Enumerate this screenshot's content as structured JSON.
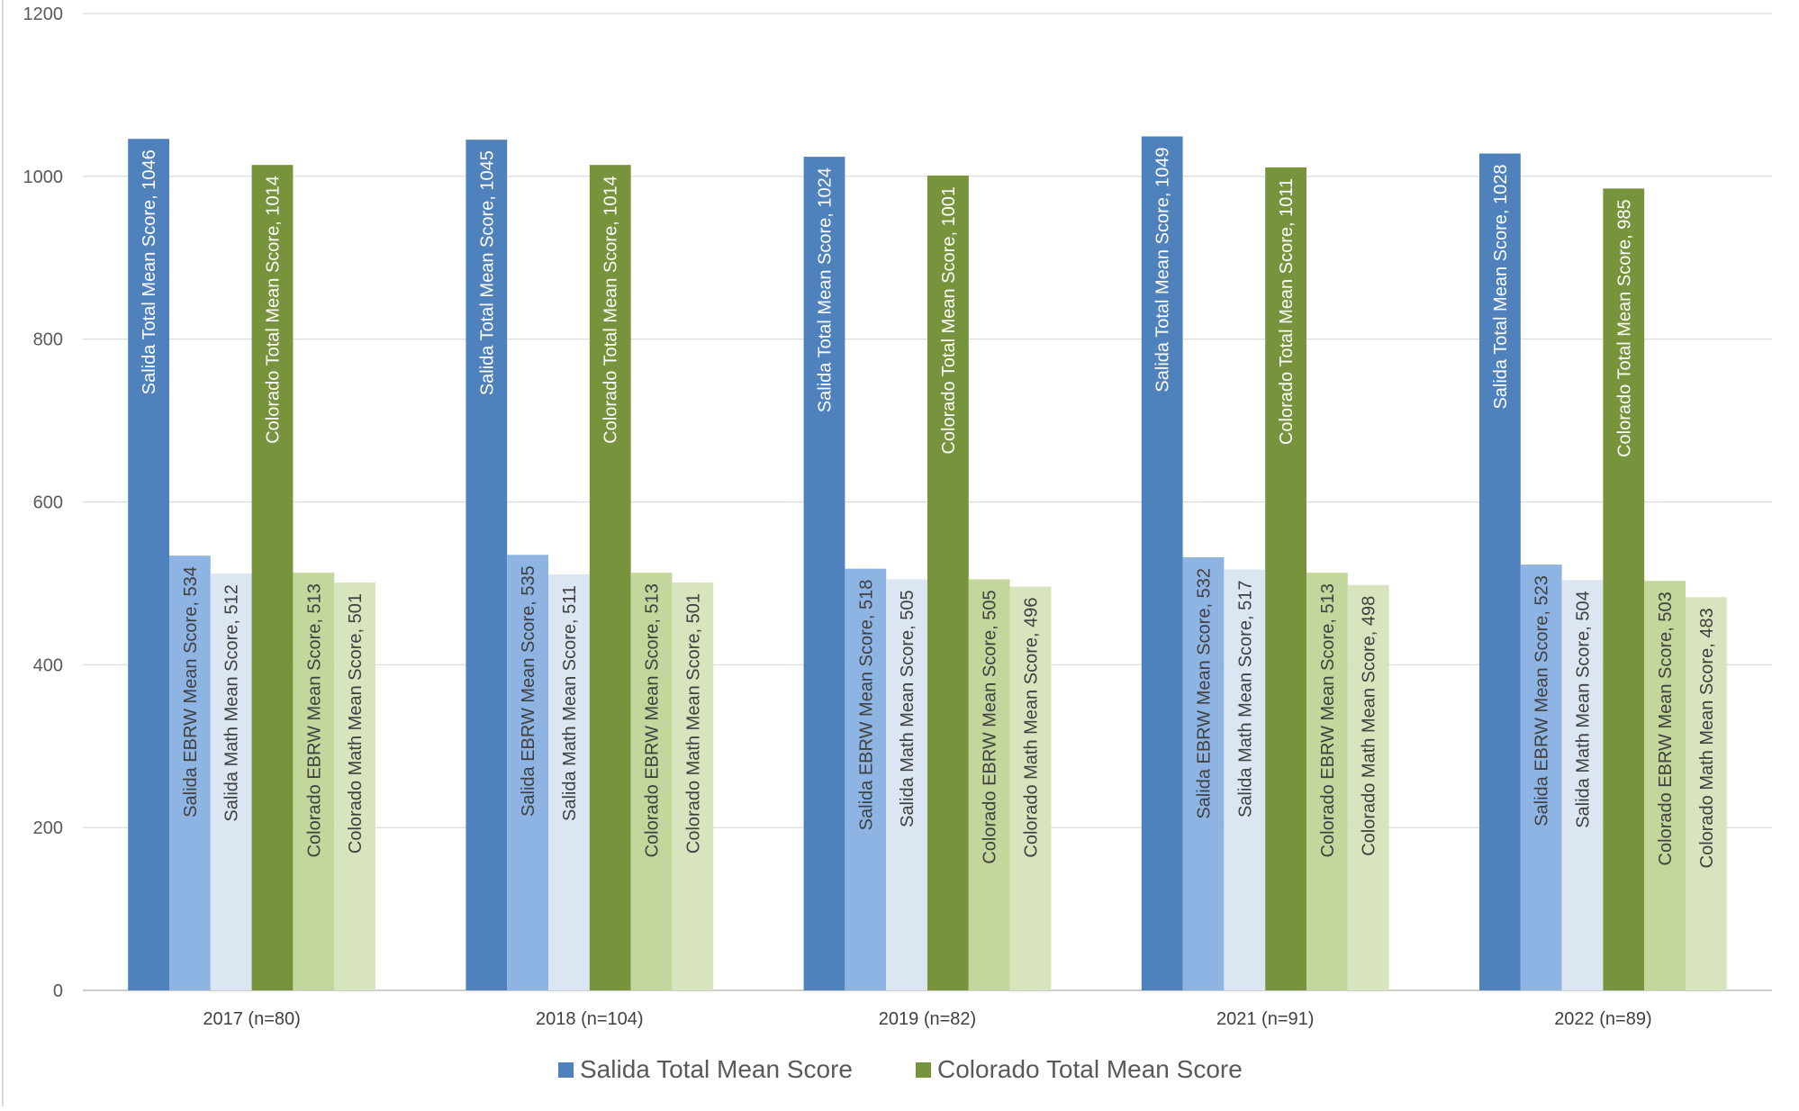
{
  "chart_data": {
    "type": "bar",
    "title": "",
    "xlabel": "",
    "ylabel": "",
    "ylim": [
      0,
      1200
    ],
    "yticks": [
      0,
      200,
      400,
      600,
      800,
      1000,
      1200
    ],
    "grid": true,
    "legend_position": "bottom",
    "categories": [
      "2017 (n=80)",
      "2018 (n=104)",
      "2019 (n=82)",
      "2021 (n=91)",
      "2022 (n=89)"
    ],
    "series": [
      {
        "name": "Salida Total Mean Score",
        "color": "#4f81bd",
        "values": [
          1046,
          1045,
          1024,
          1049,
          1028
        ]
      },
      {
        "name": "Salida EBRW Mean Score",
        "color": "#8eb4e3",
        "values": [
          534,
          535,
          518,
          532,
          523
        ]
      },
      {
        "name": "Salida Math Mean Score",
        "color": "#dce6f2",
        "values": [
          512,
          511,
          505,
          517,
          504
        ]
      },
      {
        "name": "Colorado Total Mean Score",
        "color": "#77933c",
        "values": [
          1014,
          1014,
          1001,
          1011,
          985
        ]
      },
      {
        "name": "Colorado EBRW Mean Score",
        "color": "#c3d69b",
        "values": [
          513,
          513,
          505,
          513,
          503
        ]
      },
      {
        "name": "Colorado Math Mean Score",
        "color": "#d7e4bd",
        "values": [
          501,
          501,
          496,
          498,
          483
        ]
      }
    ],
    "legend": [
      "Salida Total Mean Score",
      "Colorado Total Mean Score"
    ]
  }
}
